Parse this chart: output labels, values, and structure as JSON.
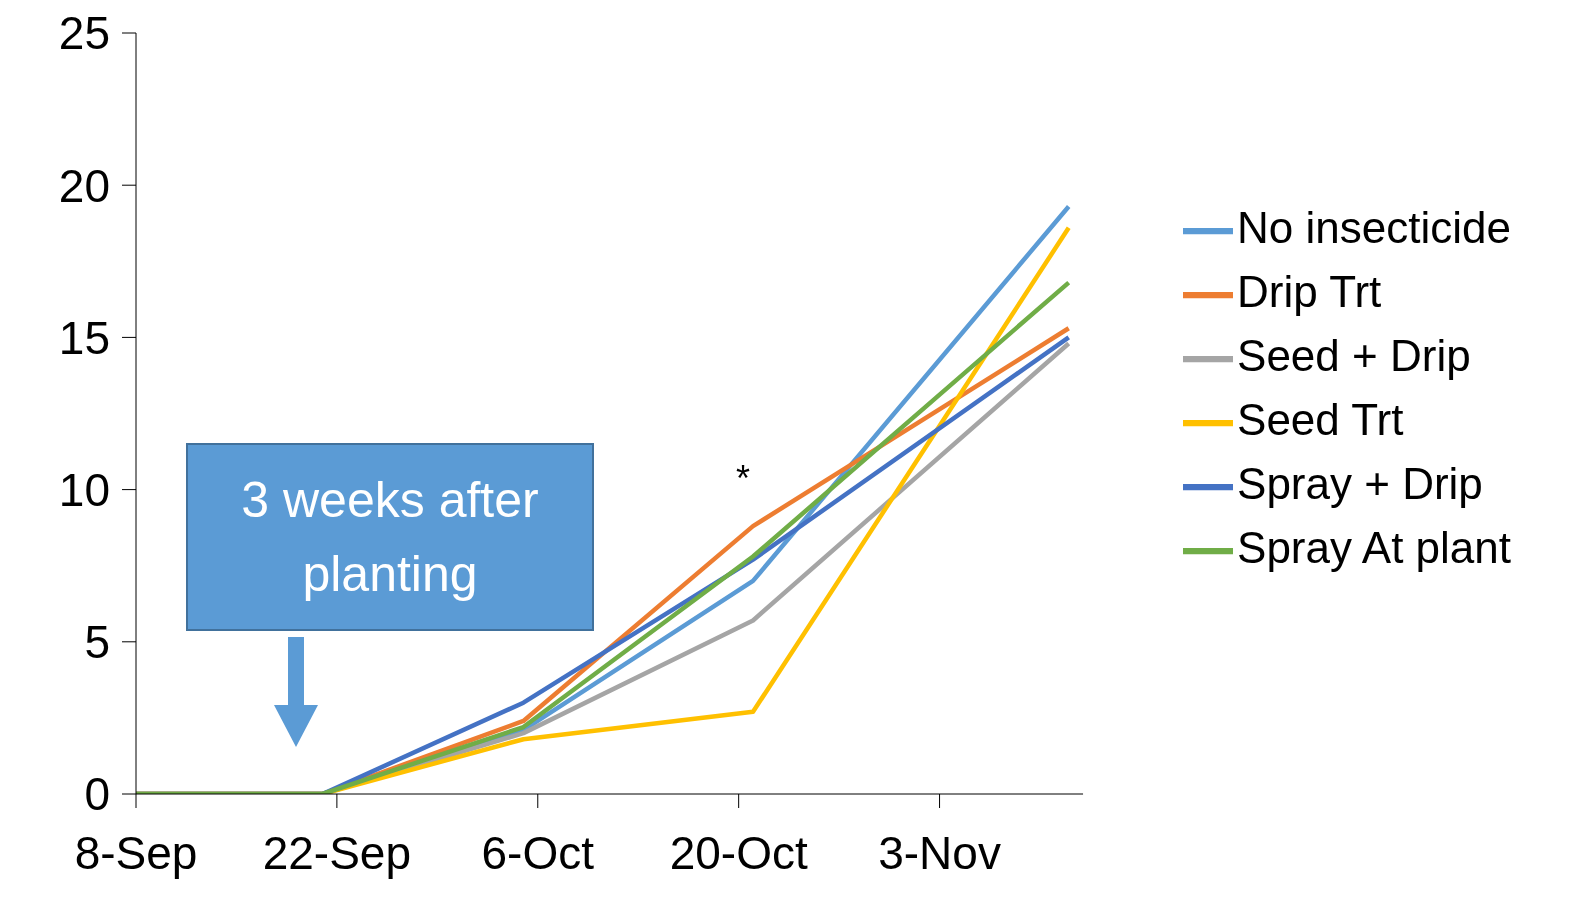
{
  "chart_data": {
    "type": "line",
    "x": [
      "--09-08",
      "--09-21",
      "--10-05",
      "--10-21",
      "--11-12"
    ],
    "series": [
      {
        "name": "No insecticide",
        "color": "#5b9bd5",
        "values": [
          0,
          0,
          2.1,
          7.0,
          19.3
        ]
      },
      {
        "name": "Drip Trt",
        "color": "#ed7d31",
        "values": [
          0,
          0,
          2.4,
          8.8,
          15.3
        ]
      },
      {
        "name": "Seed + Drip",
        "color": "#a5a5a5",
        "values": [
          0,
          0,
          2.0,
          5.7,
          14.8
        ]
      },
      {
        "name": "Seed Trt",
        "color": "#ffc000",
        "values": [
          0,
          0,
          1.8,
          2.7,
          18.6
        ]
      },
      {
        "name": "Spray + Drip",
        "color": "#4472c4",
        "values": [
          0,
          0,
          3.0,
          7.7,
          15.0
        ]
      },
      {
        "name": "Spray At plant",
        "color": "#70ad47",
        "values": [
          0,
          0,
          2.2,
          7.8,
          16.8
        ]
      }
    ],
    "xlim": [
      "--09-08",
      "--11-13"
    ],
    "xticks": [
      {
        "value": "--09-08",
        "label": "8-Sep"
      },
      {
        "value": "--09-22",
        "label": "22-Sep"
      },
      {
        "value": "--10-06",
        "label": "6-Oct"
      },
      {
        "value": "--10-20",
        "label": "20-Oct"
      },
      {
        "value": "--11-03",
        "label": "3-Nov"
      }
    ],
    "ylim": [
      0,
      25
    ],
    "yticks": [
      0,
      5,
      10,
      15,
      20,
      25
    ],
    "annotations": [
      "3 weeks after planting",
      "*"
    ],
    "legend": "right",
    "grid": false,
    "marker": "none",
    "line_style": "solid"
  }
}
